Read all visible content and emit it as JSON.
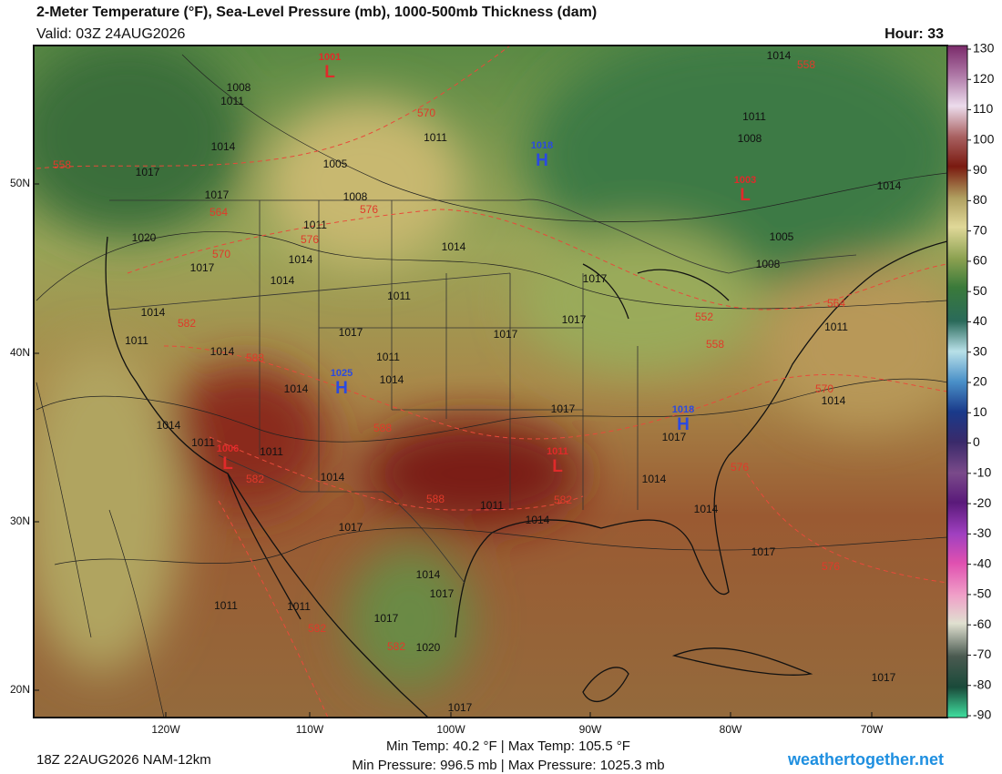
{
  "header": {
    "title": "2-Meter Temperature (°F), Sea-Level Pressure (mb), 1000-500mb Thickness (dam)",
    "valid": "Valid: 03Z 24AUG2026",
    "hour": "Hour: 33"
  },
  "map": {
    "lat_labels": [
      "50N",
      "40N",
      "30N",
      "20N"
    ],
    "lon_labels": [
      "120W",
      "110W",
      "100W",
      "90W",
      "80W",
      "70W"
    ],
    "pressure_centers": [
      {
        "label": "L",
        "value": 1001
      },
      {
        "label": "H",
        "value": 1018
      },
      {
        "label": "L",
        "value": 1003
      },
      {
        "label": "H",
        "value": 1025
      },
      {
        "label": "H",
        "value": 1018
      },
      {
        "label": "L",
        "value": 1006
      },
      {
        "label": "L",
        "value": 1011
      }
    ],
    "isobar_labels": [
      1014,
      1008,
      1011,
      1011,
      1014,
      1005,
      1017,
      1017,
      1008,
      1011,
      1020,
      1014,
      1017,
      1014,
      1014,
      1011,
      1014,
      1011,
      1017,
      1014,
      1011,
      1014,
      1014,
      1017,
      1017,
      1017,
      1008,
      1005,
      1011,
      1008,
      1014,
      1011,
      1014,
      1017,
      1014,
      1011,
      1011,
      1014,
      1011,
      1014,
      1014,
      1014,
      1017,
      1014,
      1017,
      1017,
      1017,
      1011,
      1011,
      1017,
      1020,
      1017,
      1017
    ],
    "thickness_labels": [
      570,
      558,
      558,
      564,
      576,
      576,
      570,
      582,
      564,
      552,
      558,
      570,
      588,
      588,
      582,
      588,
      582,
      576,
      582,
      582,
      576
    ]
  },
  "colorbar": {
    "ticks": [
      130,
      120,
      110,
      100,
      90,
      80,
      70,
      60,
      50,
      40,
      30,
      20,
      10,
      0,
      -10,
      -20,
      -30,
      -40,
      -50,
      -60,
      -70,
      -80,
      -90
    ]
  },
  "footer": {
    "run": "18Z 22AUG2026 NAM-12km",
    "temp_stats": "Min Temp:  40.2 °F | Max Temp: 105.5 °F",
    "pressure_stats": "Min Pressure: 996.5 mb | Max Pressure: 1025.3 mb",
    "site": "weathertogether.net"
  }
}
